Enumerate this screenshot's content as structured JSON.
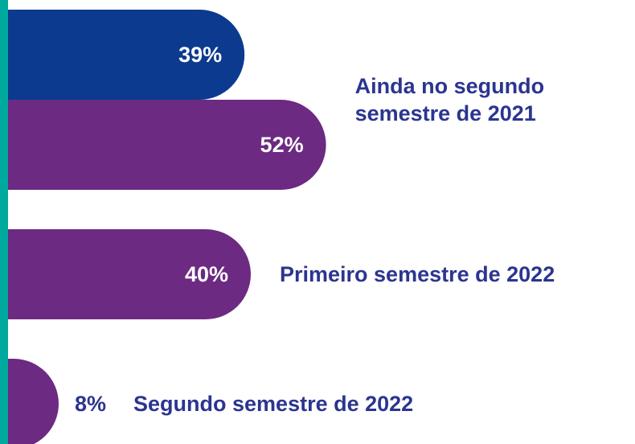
{
  "chart_data": {
    "type": "bar",
    "orientation": "horizontal",
    "categories": [
      "Ainda no segundo semestre de 2021",
      "Primeiro semestre de 2022",
      "Segundo semestre de 2022"
    ],
    "series": [
      {
        "color": "#0b3a8f",
        "values": [
          39,
          null,
          null
        ],
        "value_labels": [
          "39%",
          null,
          null
        ]
      },
      {
        "color": "#6c2a82",
        "values": [
          52,
          40,
          8
        ],
        "value_labels": [
          "52%",
          "40%",
          "8%"
        ]
      }
    ],
    "accent_color": "#00a99d",
    "label_color": "#2b3590"
  }
}
